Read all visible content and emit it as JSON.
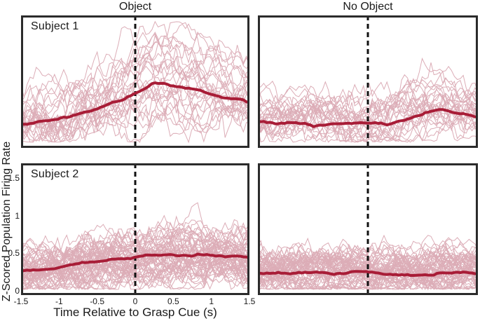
{
  "figure": {
    "column_titles": [
      "Object",
      "No Object"
    ],
    "x_axis_label": "Time Relative to Grasp Cue (s)",
    "y_axis_label": "Z-Scored Population Firing Rate"
  },
  "colors": {
    "trace": "#d69fab",
    "mean": "#a81d37",
    "cue_line": "#111111",
    "panel_border": "#2b2b2b",
    "text": "#1a1a1a",
    "background": "#ffffff"
  },
  "axes": {
    "xlim": [
      -1.5,
      1.5
    ],
    "ylim": [
      -0.06,
      1.7
    ],
    "grid": false,
    "x_ticks": [
      {
        "value": -1.5,
        "label": "-1.5"
      },
      {
        "value": -1,
        "label": "-1"
      },
      {
        "value": -0.5,
        "label": "-0.5"
      },
      {
        "value": 0,
        "label": "0"
      },
      {
        "value": 0.5,
        "label": "0.5"
      },
      {
        "value": 1,
        "label": "1"
      },
      {
        "value": 1.5,
        "label": "1.5"
      }
    ],
    "y_ticks": [
      {
        "value": 0,
        "label": "0"
      },
      {
        "value": 0.5,
        "label": "0.5"
      },
      {
        "value": 1,
        "label": "1"
      },
      {
        "value": 1.5,
        "label": "1.5"
      }
    ]
  },
  "chart_data": [
    {
      "type": "line",
      "panel": "subject1-object",
      "row_label": "Subject 1",
      "column": "Object",
      "cue_time": 0,
      "x": [
        -1.5,
        -1.25,
        -1,
        -0.75,
        -0.5,
        -0.25,
        0,
        0.25,
        0.5,
        0.75,
        1,
        1.25,
        1.5
      ],
      "mean": [
        0.25,
        0.28,
        0.33,
        0.38,
        0.46,
        0.55,
        0.67,
        0.8,
        0.76,
        0.71,
        0.64,
        0.59,
        0.55
      ],
      "ensemble": {
        "n_traces": 27,
        "seed": 11,
        "gain_range": [
          0.35,
          1.85
        ],
        "noise_sd": 0.09,
        "persistence": 0.88
      }
    },
    {
      "type": "line",
      "panel": "subject1-no-object",
      "row_label": "Subject 1",
      "column": "No Object",
      "cue_time": 0,
      "x": [
        -1.5,
        -1.25,
        -1,
        -0.75,
        -0.5,
        -0.25,
        0,
        0.25,
        0.5,
        0.75,
        1,
        1.25,
        1.5
      ],
      "mean": [
        0.28,
        0.26,
        0.28,
        0.26,
        0.27,
        0.28,
        0.27,
        0.26,
        0.31,
        0.4,
        0.47,
        0.41,
        0.37
      ],
      "ensemble": {
        "n_traces": 27,
        "seed": 22,
        "gain_range": [
          0.4,
          1.8
        ],
        "noise_sd": 0.075,
        "persistence": 0.88
      }
    },
    {
      "type": "line",
      "panel": "subject2-object",
      "row_label": "Subject 2",
      "column": "Object",
      "cue_time": 0,
      "x": [
        -1.5,
        -1.25,
        -1,
        -0.75,
        -0.5,
        -0.25,
        0,
        0.25,
        0.5,
        0.75,
        1,
        1.25,
        1.5
      ],
      "mean": [
        0.27,
        0.28,
        0.31,
        0.35,
        0.39,
        0.43,
        0.45,
        0.47,
        0.49,
        0.48,
        0.47,
        0.47,
        0.43
      ],
      "ensemble": {
        "n_traces": 58,
        "seed": 33,
        "gain_range": [
          0.5,
          1.6
        ],
        "noise_sd": 0.07,
        "persistence": 0.85
      }
    },
    {
      "type": "line",
      "panel": "subject2-no-object",
      "row_label": "Subject 2",
      "column": "No Object",
      "cue_time": 0,
      "x": [
        -1.5,
        -1.25,
        -1,
        -0.75,
        -0.5,
        -0.25,
        0,
        0.25,
        0.5,
        0.75,
        1,
        1.25,
        1.5
      ],
      "mean": [
        0.24,
        0.24,
        0.24,
        0.24,
        0.24,
        0.24,
        0.24,
        0.23,
        0.21,
        0.22,
        0.25,
        0.24,
        0.24
      ],
      "ensemble": {
        "n_traces": 58,
        "seed": 44,
        "gain_range": [
          0.45,
          1.7
        ],
        "noise_sd": 0.06,
        "persistence": 0.85
      }
    }
  ]
}
